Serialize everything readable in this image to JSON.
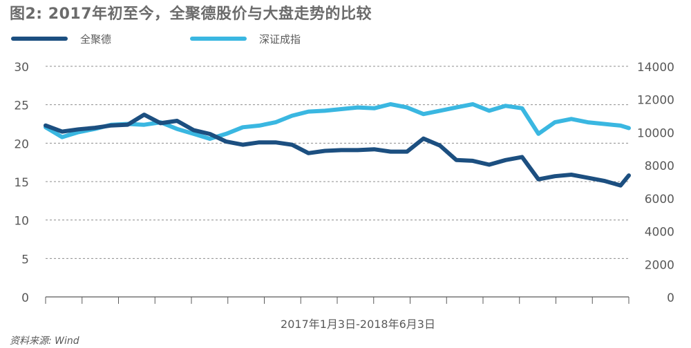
{
  "title": "图2: 2017年初至今，全聚德股价与大盘走势的比较",
  "source": "资料来源: Wind",
  "colors": {
    "series1": "#1c4f80",
    "series2": "#3ab7e1",
    "grid": "#8c8c8c",
    "axis": "#595959"
  },
  "chart_data": {
    "type": "line",
    "title": "图2: 2017年初至今，全聚德股价与大盘走势的比较",
    "xlabel": "2017年1月3日-2018年6月3日",
    "y_left": {
      "lim": [
        0,
        30
      ],
      "ticks": [
        "0",
        "5",
        "10",
        "15",
        "20",
        "25",
        "30"
      ]
    },
    "y_right": {
      "lim": [
        0,
        14000
      ],
      "ticks": [
        "0",
        "2000",
        "4000",
        "6000",
        "8000",
        "10000",
        "12000",
        "14000"
      ]
    },
    "grid": true,
    "legend_position": "top-left",
    "x_index": [
      0,
      10,
      20,
      30,
      40,
      50,
      60,
      70,
      80,
      90,
      100,
      110,
      120,
      130,
      140,
      150,
      160,
      170,
      180,
      190,
      200,
      210,
      220,
      230,
      240,
      250,
      260,
      270,
      280,
      290,
      300,
      310,
      320,
      330,
      340,
      350,
      355
    ],
    "series": [
      {
        "name": "全聚德",
        "axis": "left",
        "values": [
          22.3,
          21.5,
          21.8,
          22.0,
          22.3,
          22.4,
          23.7,
          22.6,
          22.9,
          21.7,
          21.2,
          20.2,
          19.8,
          20.1,
          20.1,
          19.8,
          18.7,
          19.0,
          19.1,
          19.1,
          19.2,
          18.9,
          18.9,
          20.6,
          19.7,
          17.8,
          17.7,
          17.2,
          17.8,
          18.2,
          15.3,
          15.7,
          15.9,
          15.5,
          15.1,
          14.5,
          15.8
        ]
      },
      {
        "name": "深证成指",
        "axis": "right",
        "values": [
          10300,
          9700,
          10000,
          10200,
          10450,
          10500,
          10450,
          10600,
          10200,
          9900,
          9600,
          9900,
          10300,
          10400,
          10600,
          11000,
          11250,
          11300,
          11400,
          11500,
          11450,
          11700,
          11500,
          11100,
          11300,
          11500,
          11700,
          11300,
          11600,
          11450,
          9900,
          10600,
          10800,
          10600,
          10500,
          10400,
          10250
        ]
      }
    ]
  }
}
